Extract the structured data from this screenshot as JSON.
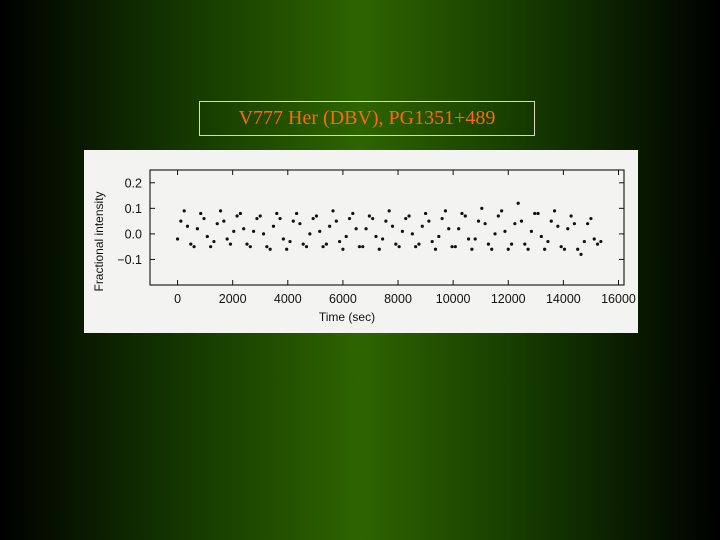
{
  "slide": {
    "title": "V777  Her (DBV), PG1351+489",
    "title_color": "#ff6a00",
    "background_color": "#2e6400"
  },
  "chart_data": {
    "type": "scatter",
    "title": "",
    "xlabel": "Time (sec)",
    "ylabel": "Fractional intensity",
    "xlim": [
      -1000,
      16200
    ],
    "ylim": [
      -0.2,
      0.25
    ],
    "x_ticks": [
      0,
      2000,
      4000,
      6000,
      8000,
      10000,
      12000,
      14000,
      16000
    ],
    "x_tick_labels": [
      "0",
      "2000",
      "4000",
      "6000",
      "8000",
      "10000",
      "12000",
      "14000",
      "16000"
    ],
    "y_ticks": [
      0.2,
      0.1,
      0.0,
      -0.1
    ],
    "y_tick_labels": [
      "0.2",
      "0.1",
      "0.0",
      "−0.1"
    ],
    "grid": false,
    "legend": "none",
    "marker_color": "#111111",
    "series": [
      {
        "x": [
          0,
          120,
          240,
          360,
          480,
          600,
          720,
          840,
          960,
          1080,
          1200,
          1320,
          1440,
          1560,
          1680,
          1800,
          1920,
          2040,
          2160,
          2280,
          2400,
          2520,
          2640,
          2760,
          2880,
          3000,
          3120,
          3240,
          3360,
          3480,
          3600,
          3720,
          3840,
          3960,
          4080,
          4200,
          4320,
          4440,
          4560,
          4680,
          4800,
          4920,
          5040,
          5160,
          5280,
          5400,
          5520,
          5640,
          5760,
          5880,
          6000,
          6120,
          6240,
          6360,
          6480,
          6600,
          6720,
          6840,
          6960,
          7080,
          7200,
          7320,
          7440,
          7560,
          7680,
          7800,
          7920,
          8040,
          8160,
          8280,
          8400,
          8520,
          8640,
          8760,
          8880,
          9000,
          9120,
          9240,
          9360,
          9480,
          9600,
          9720,
          9840,
          9960,
          10080,
          10200,
          10320,
          10440,
          10560,
          10680,
          10800,
          10920,
          11040,
          11160,
          11280,
          11400,
          11520,
          11640,
          11760,
          11880,
          12000,
          12120,
          12240,
          12360,
          12480,
          12600,
          12720,
          12840,
          12960,
          13080,
          13200,
          13320,
          13440,
          13560,
          13680,
          13800,
          13920,
          14040,
          14160,
          14280,
          14400,
          14520,
          14640,
          14760,
          14880,
          15000,
          15120,
          15240,
          15360
        ],
        "y": [
          -0.02,
          0.05,
          0.09,
          0.03,
          -0.04,
          -0.05,
          0.02,
          0.08,
          0.06,
          -0.01,
          -0.05,
          -0.03,
          0.04,
          0.09,
          0.05,
          -0.02,
          -0.04,
          0.01,
          0.07,
          0.08,
          0.02,
          -0.04,
          -0.05,
          0.01,
          0.06,
          0.07,
          0.0,
          -0.05,
          -0.06,
          0.03,
          0.08,
          0.06,
          -0.02,
          -0.06,
          -0.03,
          0.05,
          0.08,
          0.04,
          -0.04,
          -0.05,
          0.0,
          0.06,
          0.07,
          0.01,
          -0.05,
          -0.04,
          0.03,
          0.09,
          0.05,
          -0.03,
          -0.06,
          -0.01,
          0.06,
          0.08,
          0.02,
          -0.05,
          -0.05,
          0.02,
          0.07,
          0.06,
          -0.01,
          -0.06,
          -0.02,
          0.05,
          0.09,
          0.03,
          -0.04,
          -0.05,
          0.01,
          0.06,
          0.07,
          0.0,
          -0.05,
          -0.04,
          0.03,
          0.08,
          0.05,
          -0.03,
          -0.06,
          -0.01,
          0.06,
          0.09,
          0.02,
          -0.05,
          -0.05,
          0.02,
          0.08,
          0.07,
          -0.02,
          -0.06,
          -0.02,
          0.05,
          0.1,
          0.04,
          -0.04,
          -0.06,
          0.0,
          0.07,
          0.09,
          0.01,
          -0.06,
          -0.04,
          0.04,
          0.12,
          0.05,
          -0.04,
          -0.06,
          0.01,
          0.08,
          0.08,
          -0.01,
          -0.06,
          -0.03,
          0.05,
          0.09,
          0.03,
          -0.05,
          -0.06,
          0.02,
          0.07,
          0.04,
          -0.06,
          -0.08,
          -0.03,
          0.04,
          0.06,
          -0.02,
          -0.04,
          -0.03
        ]
      }
    ]
  }
}
